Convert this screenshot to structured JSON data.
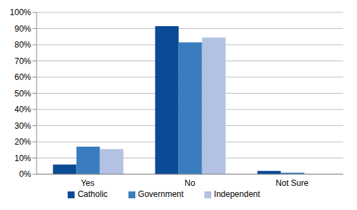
{
  "chart_data": {
    "type": "bar",
    "categories": [
      "Yes",
      "No",
      "Not Sure"
    ],
    "series": [
      {
        "name": "Catholic",
        "color": "#0b4a95",
        "values": [
          6,
          91.5,
          2
        ]
      },
      {
        "name": "Government",
        "color": "#3a7dbf",
        "values": [
          17,
          81.5,
          1
        ]
      },
      {
        "name": "Independent",
        "color": "#b3c2e3",
        "values": [
          15.5,
          84.5,
          0
        ]
      }
    ],
    "ylim": [
      0,
      100
    ],
    "yticks": [
      {
        "value": 0,
        "label": "0%"
      },
      {
        "value": 10,
        "label": "10%"
      },
      {
        "value": 20,
        "label": "20%"
      },
      {
        "value": 30,
        "label": "30%"
      },
      {
        "value": 40,
        "label": "40%"
      },
      {
        "value": 50,
        "label": "50%"
      },
      {
        "value": 60,
        "label": "60%"
      },
      {
        "value": 70,
        "label": "70%"
      },
      {
        "value": 80,
        "label": "80%"
      },
      {
        "value": 90,
        "label": "90%"
      },
      {
        "value": 100,
        "label": "100%"
      }
    ],
    "grid": true,
    "legend": "bottom"
  }
}
